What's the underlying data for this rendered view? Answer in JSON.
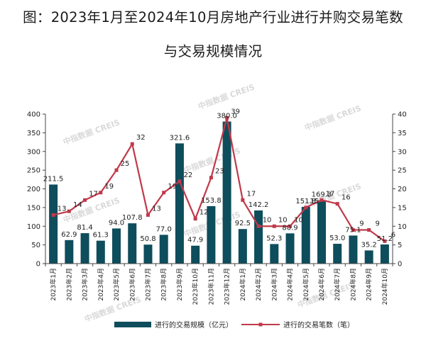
{
  "title_line1": "图：2023年1月至2024年10月房地产行业进行并购交易笔数",
  "title_line2": "与交易规模情况",
  "watermark": "中指数据 CREIS",
  "colors": {
    "bar": "#0e4d5c",
    "line": "#c0394a",
    "axis": "#444444",
    "text": "#222222"
  },
  "chart_data": {
    "type": "bar",
    "title": "图：2023年1月至2024年10月房地产行业进行并购交易笔数与交易规模情况",
    "categories": [
      "2023年1月",
      "2023年2月",
      "2023年3月",
      "2023年4月",
      "2023年5月",
      "2023年6月",
      "2023年7月",
      "2023年8月",
      "2023年9月",
      "2023年10月",
      "2023年11月",
      "2023年12月",
      "2024年1月",
      "2024年2月",
      "2024年3月",
      "2024年4月",
      "2024年5月",
      "2024年6月",
      "2024年7月",
      "2024年8月",
      "2024年9月",
      "2024年10月"
    ],
    "series": [
      {
        "name": "进行的交易规模（亿元）",
        "type": "bar",
        "axis": "left",
        "values": [
          211.5,
          62.9,
          81.4,
          61.3,
          94.0,
          107.8,
          50.8,
          77.0,
          321.6,
          47.9,
          153.8,
          380.0,
          92.5,
          142.2,
          52.3,
          80.9,
          151.8,
          169.3,
          53.0,
          75.1,
          35.2,
          51.2
        ],
        "labels": [
          "211.5",
          "62.9",
          "81.4",
          "61.3",
          "94.0",
          "107.8",
          "50.8",
          "77.0",
          "321.6",
          "47.9",
          "153.8",
          "380.0",
          "92.5",
          "142.2",
          "52.3",
          "80.9",
          "151.8",
          "169.3",
          "53.0",
          "75.1",
          "35.2",
          "51.2"
        ]
      },
      {
        "name": "进行的交易笔数（笔）",
        "type": "line",
        "axis": "right",
        "values": [
          13,
          14,
          17,
          19,
          25,
          32,
          13,
          19,
          22,
          12,
          23,
          39,
          17,
          10,
          10,
          10,
          15,
          17,
          16,
          9,
          9,
          6
        ],
        "labels": [
          "13",
          "14",
          "17",
          "19",
          "25",
          "32",
          "13",
          "19",
          "22",
          "12",
          "23",
          "39",
          "17",
          "10",
          "10",
          "10",
          "15",
          "17",
          "16",
          "9",
          "9",
          "6"
        ]
      }
    ],
    "ylim_left": [
      0,
      400
    ],
    "yticks_left": [
      "0",
      "50",
      "100",
      "150",
      "200",
      "250",
      "300",
      "350",
      "400"
    ],
    "ylim_right": [
      0,
      40
    ],
    "yticks_right": [
      "0",
      "5",
      "10",
      "15",
      "20",
      "25",
      "30",
      "35",
      "40"
    ],
    "grid": false,
    "legend_position": "bottom"
  }
}
